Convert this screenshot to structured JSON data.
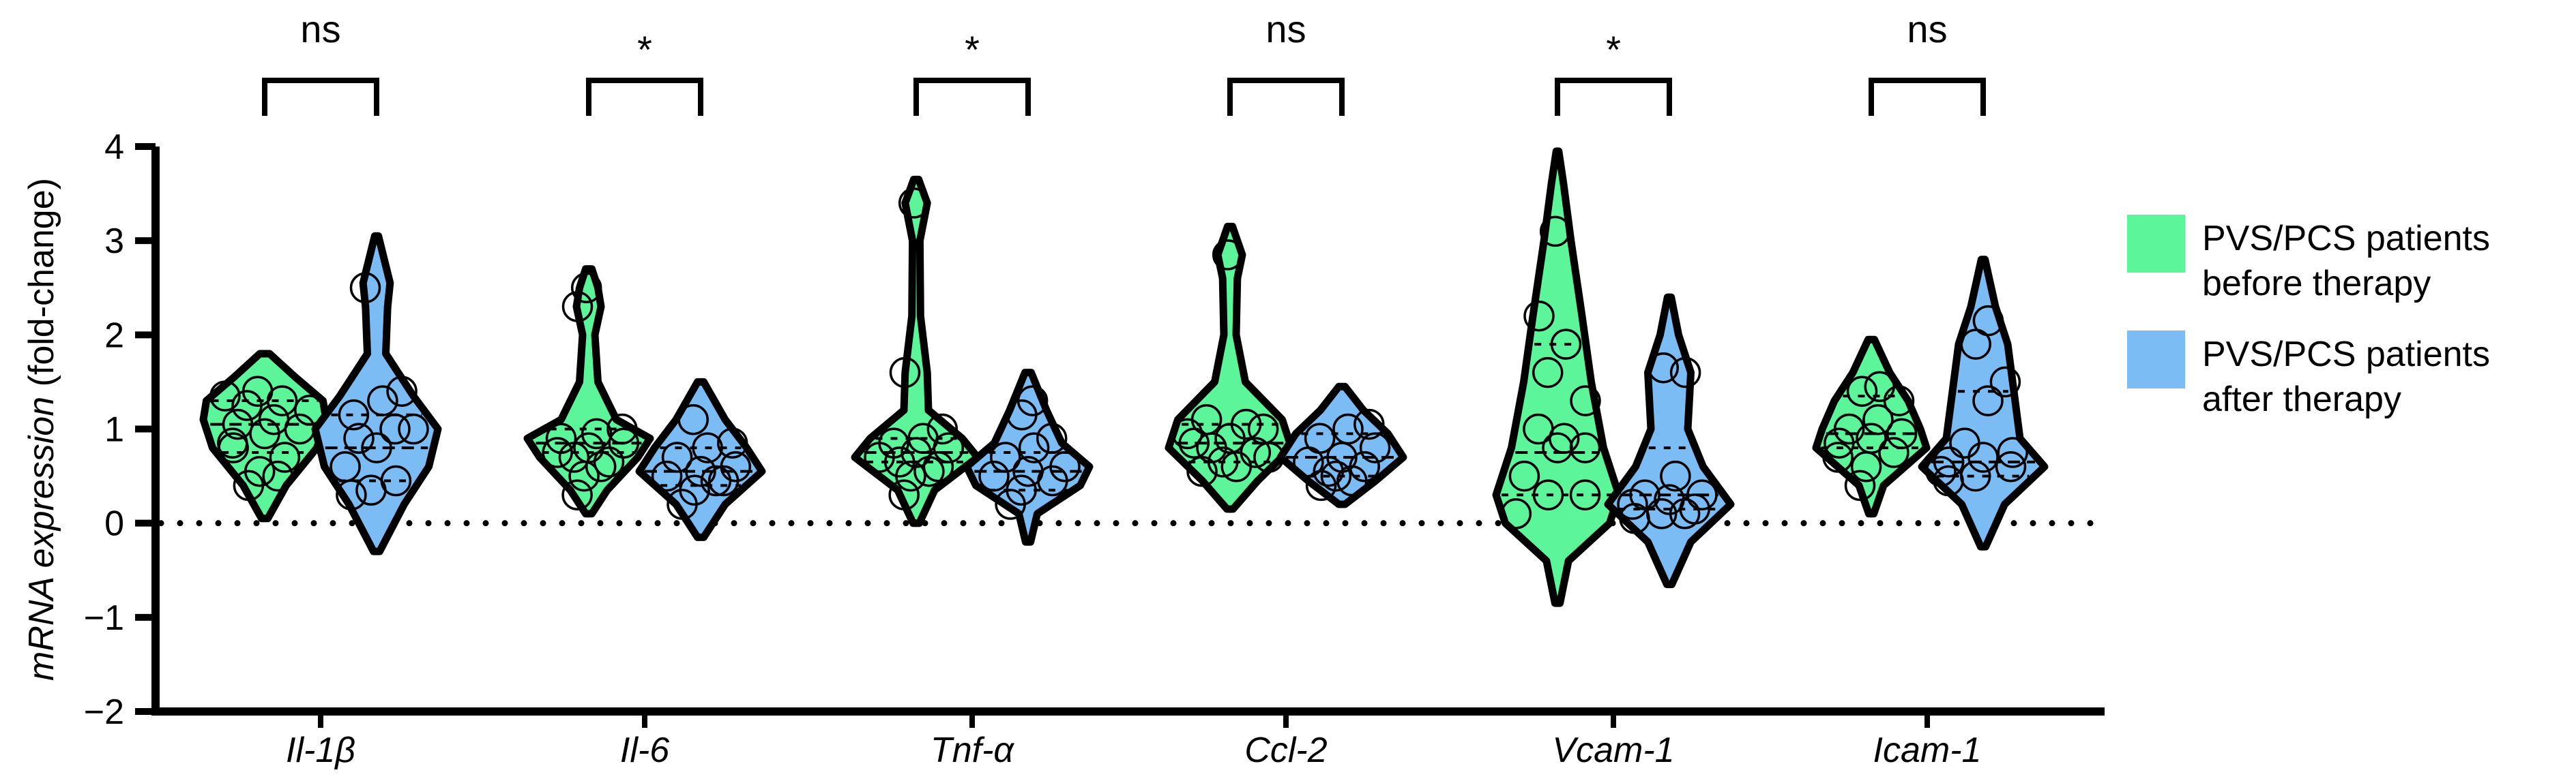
{
  "chart_data": {
    "type": "violin",
    "title": "",
    "ylabel": {
      "italic_part": "mRNA expression",
      "plain_part": " (fold-change)"
    },
    "xlabel": "",
    "ylim": [
      -2,
      4
    ],
    "yticks": [
      -2,
      -1,
      0,
      1,
      2,
      3,
      4
    ],
    "reference_line": 0,
    "categories": [
      "Il-1β",
      "Il-6",
      "Tnf-α",
      "Ccl-2",
      "Vcam-1",
      "Icam-1"
    ],
    "significance": [
      "ns",
      "*",
      "*",
      "ns",
      "*",
      "ns"
    ],
    "series": [
      {
        "name": "PVS/PCS patients before therapy",
        "legend_lines": [
          "PVS/PCS patients",
          "before therapy"
        ],
        "color": "#5cf59a",
        "groups": [
          {
            "min": 0.05,
            "max": 1.8,
            "q1": 0.75,
            "median": 1.05,
            "q3": 1.3,
            "points": [
              0.4,
              0.55,
              0.7,
              0.85,
              0.95,
              1.0,
              1.05,
              1.1,
              1.2,
              1.25,
              1.3,
              1.35,
              1.4,
              0.5,
              0.8
            ],
            "profile": [
              [
                0.05,
                0.05
              ],
              [
                0.4,
                0.35
              ],
              [
                0.8,
                0.85
              ],
              [
                1.1,
                1.0
              ],
              [
                1.3,
                0.95
              ],
              [
                1.55,
                0.5
              ],
              [
                1.8,
                0.08
              ]
            ]
          },
          {
            "min": 0.1,
            "max": 2.7,
            "q1": 0.75,
            "median": 0.85,
            "q3": 1.0,
            "points": [
              0.3,
              0.5,
              0.65,
              0.75,
              0.8,
              0.85,
              0.9,
              0.95,
              1.0,
              0.7,
              0.6,
              2.3,
              2.5
            ],
            "profile": [
              [
                0.1,
                0.05
              ],
              [
                0.35,
                0.3
              ],
              [
                0.7,
                0.8
              ],
              [
                0.9,
                1.0
              ],
              [
                1.1,
                0.45
              ],
              [
                1.5,
                0.15
              ],
              [
                2.0,
                0.1
              ],
              [
                2.3,
                0.2
              ],
              [
                2.5,
                0.15
              ],
              [
                2.7,
                0.05
              ]
            ]
          },
          {
            "min": 0.0,
            "max": 3.65,
            "q1": 0.65,
            "median": 0.75,
            "q3": 0.9,
            "points": [
              0.3,
              0.5,
              0.6,
              0.7,
              0.75,
              0.8,
              0.85,
              0.9,
              1.0,
              0.65,
              0.55,
              1.6,
              3.4
            ],
            "profile": [
              [
                0.0,
                0.05
              ],
              [
                0.35,
                0.3
              ],
              [
                0.7,
                1.0
              ],
              [
                0.9,
                0.75
              ],
              [
                1.2,
                0.2
              ],
              [
                1.6,
                0.18
              ],
              [
                2.2,
                0.07
              ],
              [
                3.0,
                0.06
              ],
              [
                3.4,
                0.18
              ],
              [
                3.65,
                0.04
              ]
            ]
          },
          {
            "min": 0.15,
            "max": 3.15,
            "q1": 0.65,
            "median": 0.85,
            "q3": 1.05,
            "points": [
              0.55,
              0.65,
              0.75,
              0.85,
              0.9,
              1.0,
              1.1,
              0.6,
              0.7,
              0.8,
              1.05,
              0.95,
              2.85
            ],
            "profile": [
              [
                0.15,
                0.05
              ],
              [
                0.45,
                0.45
              ],
              [
                0.8,
                1.0
              ],
              [
                1.1,
                0.85
              ],
              [
                1.5,
                0.25
              ],
              [
                2.0,
                0.1
              ],
              [
                2.6,
                0.12
              ],
              [
                2.85,
                0.2
              ],
              [
                3.15,
                0.04
              ]
            ]
          },
          {
            "min": -0.85,
            "max": 3.95,
            "q1": 0.3,
            "median": 0.75,
            "q3": 1.9,
            "points": [
              0.1,
              0.3,
              0.3,
              0.5,
              0.8,
              0.8,
              1.0,
              0.9,
              1.3,
              1.6,
              1.9,
              2.2,
              3.1
            ],
            "profile": [
              [
                -0.85,
                0.04
              ],
              [
                -0.4,
                0.18
              ],
              [
                0.0,
                0.85
              ],
              [
                0.3,
                1.0
              ],
              [
                0.8,
                0.75
              ],
              [
                1.5,
                0.55
              ],
              [
                2.2,
                0.4
              ],
              [
                3.0,
                0.22
              ],
              [
                3.6,
                0.1
              ],
              [
                3.95,
                0.02
              ]
            ]
          },
          {
            "min": 0.1,
            "max": 1.95,
            "q1": 0.8,
            "median": 0.95,
            "q3": 1.35,
            "points": [
              0.4,
              0.6,
              0.75,
              0.85,
              0.9,
              0.95,
              1.0,
              1.1,
              1.3,
              1.4,
              1.45,
              0.7
            ],
            "profile": [
              [
                0.1,
                0.04
              ],
              [
                0.4,
                0.2
              ],
              [
                0.8,
                0.9
              ],
              [
                1.0,
                0.8
              ],
              [
                1.3,
                0.6
              ],
              [
                1.6,
                0.3
              ],
              [
                1.95,
                0.05
              ]
            ]
          }
        ]
      },
      {
        "name": "PVS/PCS patients after therapy",
        "legend_lines": [
          "PVS/PCS patients",
          "after therapy"
        ],
        "color": "#7cbcf5",
        "groups": [
          {
            "min": -0.3,
            "max": 3.05,
            "q1": 0.45,
            "median": 0.8,
            "q3": 1.15,
            "points": [
              0.3,
              0.35,
              0.45,
              0.6,
              0.8,
              1.0,
              1.15,
              1.3,
              1.4,
              0.9,
              1.0,
              2.5
            ],
            "profile": [
              [
                -0.3,
                0.05
              ],
              [
                0.2,
                0.45
              ],
              [
                0.6,
                0.85
              ],
              [
                1.0,
                1.0
              ],
              [
                1.35,
                0.6
              ],
              [
                1.8,
                0.15
              ],
              [
                2.3,
                0.18
              ],
              [
                2.55,
                0.22
              ],
              [
                3.05,
                0.03
              ]
            ]
          },
          {
            "min": -0.15,
            "max": 1.5,
            "q1": 0.4,
            "median": 0.55,
            "q3": 0.8,
            "points": [
              0.2,
              0.35,
              0.45,
              0.5,
              0.55,
              0.6,
              0.7,
              0.8,
              0.85,
              1.1,
              0.45
            ],
            "profile": [
              [
                -0.15,
                0.05
              ],
              [
                0.2,
                0.4
              ],
              [
                0.55,
                1.0
              ],
              [
                0.8,
                0.75
              ],
              [
                1.1,
                0.4
              ],
              [
                1.5,
                0.05
              ]
            ]
          },
          {
            "min": -0.2,
            "max": 1.6,
            "q1": 0.35,
            "median": 0.55,
            "q3": 0.75,
            "points": [
              0.2,
              0.35,
              0.45,
              0.5,
              0.55,
              0.6,
              0.7,
              0.8,
              0.9,
              1.15,
              1.3
            ],
            "profile": [
              [
                -0.2,
                0.04
              ],
              [
                0.1,
                0.15
              ],
              [
                0.4,
                0.85
              ],
              [
                0.6,
                1.0
              ],
              [
                0.85,
                0.55
              ],
              [
                1.2,
                0.3
              ],
              [
                1.6,
                0.05
              ]
            ]
          },
          {
            "min": 0.2,
            "max": 1.45,
            "q1": 0.5,
            "median": 0.7,
            "q3": 0.95,
            "points": [
              0.4,
              0.5,
              0.6,
              0.65,
              0.7,
              0.8,
              0.9,
              1.0,
              1.05,
              0.55,
              0.45
            ],
            "profile": [
              [
                0.2,
                0.05
              ],
              [
                0.45,
                0.55
              ],
              [
                0.7,
                1.0
              ],
              [
                0.95,
                0.75
              ],
              [
                1.2,
                0.35
              ],
              [
                1.45,
                0.05
              ]
            ]
          },
          {
            "min": -0.65,
            "max": 2.4,
            "q1": 0.15,
            "median": 0.3,
            "q3": 0.8,
            "points": [
              0.05,
              0.1,
              0.15,
              0.2,
              0.25,
              0.3,
              0.3,
              0.5,
              1.6,
              1.65,
              0.1
            ],
            "profile": [
              [
                -0.65,
                0.04
              ],
              [
                -0.2,
                0.35
              ],
              [
                0.2,
                1.0
              ],
              [
                0.6,
                0.55
              ],
              [
                1.0,
                0.3
              ],
              [
                1.6,
                0.35
              ],
              [
                2.0,
                0.15
              ],
              [
                2.4,
                0.03
              ]
            ]
          },
          {
            "min": -0.25,
            "max": 2.8,
            "q1": 0.5,
            "median": 0.65,
            "q3": 1.4,
            "points": [
              0.45,
              0.5,
              0.6,
              0.65,
              0.7,
              0.75,
              0.85,
              1.3,
              1.5,
              1.9,
              2.15,
              0.55
            ],
            "profile": [
              [
                -0.25,
                0.04
              ],
              [
                0.2,
                0.35
              ],
              [
                0.6,
                1.0
              ],
              [
                0.9,
                0.6
              ],
              [
                1.4,
                0.5
              ],
              [
                1.9,
                0.4
              ],
              [
                2.3,
                0.2
              ],
              [
                2.8,
                0.03
              ]
            ]
          }
        ]
      }
    ]
  }
}
